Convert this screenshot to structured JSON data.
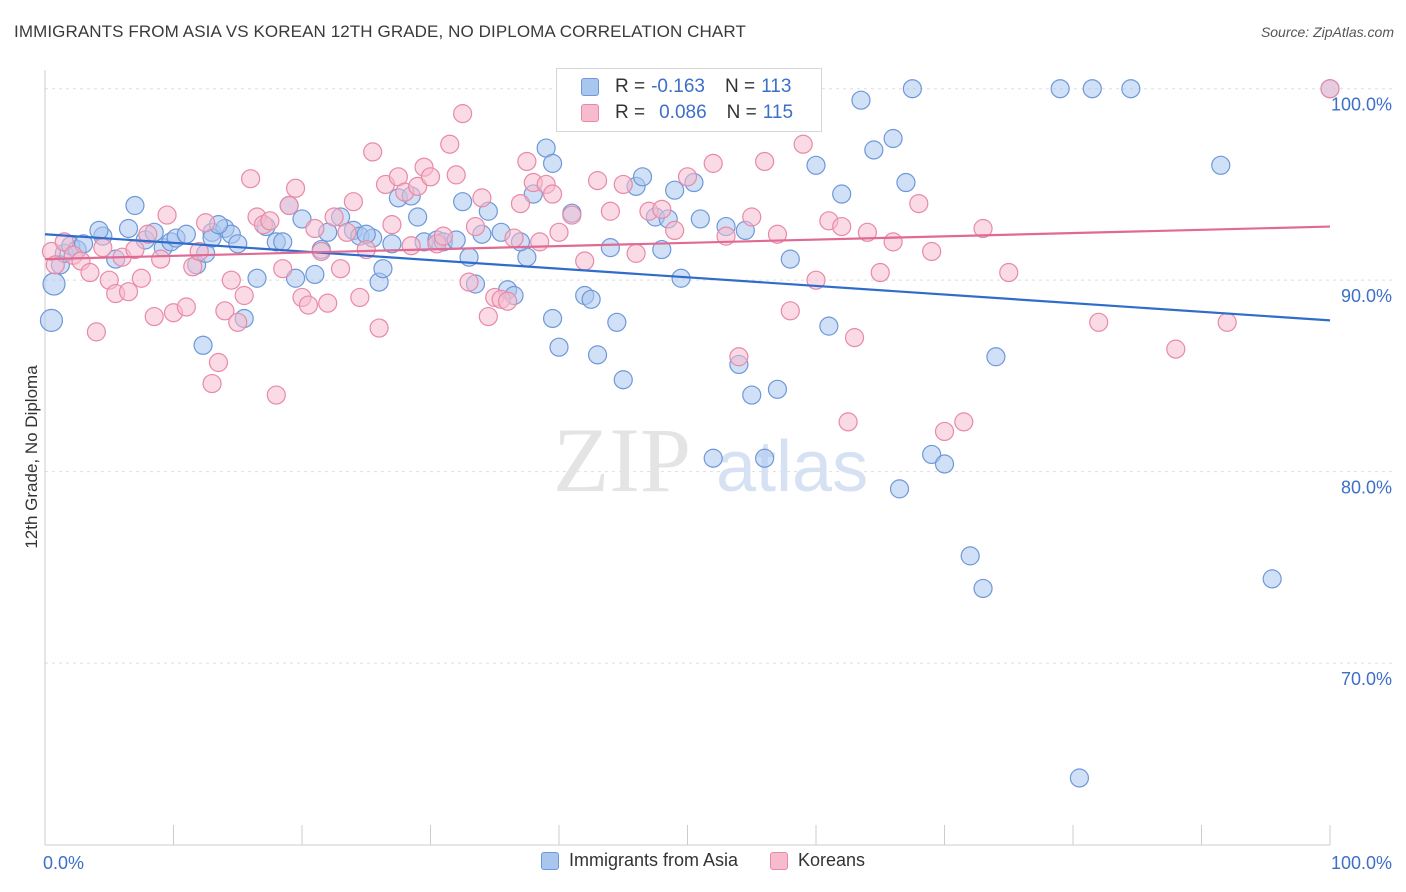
{
  "title": "IMMIGRANTS FROM ASIA VS KOREAN 12TH GRADE, NO DIPLOMA CORRELATION CHART",
  "source": "Source: ZipAtlas.com",
  "watermark": {
    "zip": "ZIP",
    "atlas": "atlas"
  },
  "legend_top": [
    {
      "r_label": "R =",
      "r_value": "-0.163",
      "n_label": "N =",
      "n_value": "113"
    },
    {
      "r_label": "R =",
      "r_value": "0.086",
      "n_label": "N =",
      "n_value": "115"
    }
  ],
  "legend_bottom": [
    "Immigrants from Asia",
    "Koreans"
  ],
  "colors": {
    "blue_fill": "#a9c6ee",
    "blue_stroke": "#6f98d8",
    "blue_line": "#2f6ccc",
    "pink_fill": "#f6bccd",
    "pink_stroke": "#e88aa7",
    "pink_line": "#e06a93",
    "tick_label": "#3d6fc9",
    "grid": "#dddddd"
  },
  "chart_data": {
    "type": "scatter",
    "title": "IMMIGRANTS FROM ASIA VS KOREAN 12TH GRADE, NO DIPLOMA CORRELATION CHART",
    "xlabel": "",
    "ylabel": "12th Grade, No Diploma",
    "xlim": [
      0,
      100
    ],
    "ylim": [
      60.5,
      101.5
    ],
    "x_tick_labels": [
      "0.0%",
      "100.0%"
    ],
    "y_ticks": [
      100,
      90,
      80,
      70
    ],
    "y_tick_labels": [
      "100.0%",
      "90.0%",
      "80.0%",
      "70.0%"
    ],
    "grid": true,
    "legend_position": "top-center",
    "series": [
      {
        "name": "Immigrants from Asia",
        "r": -0.163,
        "n": 113,
        "trend": [
          [
            0,
            92.4
          ],
          [
            100,
            87.9
          ]
        ],
        "points": [
          [
            0.5,
            87.9
          ],
          [
            0.7,
            89.8
          ],
          [
            1.2,
            90.8
          ],
          [
            1.5,
            91.4
          ],
          [
            2.0,
            91.8
          ],
          [
            2.5,
            91.6
          ],
          [
            3.0,
            91.9
          ],
          [
            4.5,
            92.3
          ],
          [
            4.2,
            92.6
          ],
          [
            5.5,
            91.1
          ],
          [
            6.5,
            92.7
          ],
          [
            7.0,
            93.9
          ],
          [
            7.8,
            92.1
          ],
          [
            8.5,
            92.5
          ],
          [
            9.2,
            91.7
          ],
          [
            9.8,
            92.0
          ],
          [
            10.2,
            92.2
          ],
          [
            11.0,
            92.4
          ],
          [
            11.8,
            90.8
          ],
          [
            12.5,
            91.4
          ],
          [
            13.0,
            92.5
          ],
          [
            14.0,
            92.7
          ],
          [
            14.5,
            92.4
          ],
          [
            15.0,
            91.9
          ],
          [
            15.5,
            88.0
          ],
          [
            12.3,
            86.6
          ],
          [
            13.0,
            92.2
          ],
          [
            16.5,
            90.1
          ],
          [
            17.2,
            92.8
          ],
          [
            18.0,
            92.0
          ],
          [
            18.5,
            92.0
          ],
          [
            19.0,
            93.9
          ],
          [
            19.5,
            90.1
          ],
          [
            20.0,
            93.2
          ],
          [
            21.0,
            90.3
          ],
          [
            21.5,
            91.6
          ],
          [
            22.0,
            92.5
          ],
          [
            23.0,
            93.3
          ],
          [
            24.0,
            92.6
          ],
          [
            24.5,
            92.3
          ],
          [
            25.5,
            92.2
          ],
          [
            26.0,
            89.9
          ],
          [
            26.3,
            90.6
          ],
          [
            27.0,
            91.9
          ],
          [
            27.5,
            94.3
          ],
          [
            28.5,
            94.4
          ],
          [
            29.0,
            93.3
          ],
          [
            29.5,
            92.0
          ],
          [
            30.5,
            92.1
          ],
          [
            31.0,
            92.0
          ],
          [
            32.0,
            92.1
          ],
          [
            32.5,
            94.1
          ],
          [
            33.0,
            91.2
          ],
          [
            33.5,
            89.8
          ],
          [
            34.0,
            92.4
          ],
          [
            34.5,
            93.6
          ],
          [
            35.5,
            92.5
          ],
          [
            36.0,
            89.5
          ],
          [
            36.5,
            89.2
          ],
          [
            37.5,
            91.2
          ],
          [
            38.0,
            94.5
          ],
          [
            39.0,
            96.9
          ],
          [
            39.5,
            96.1
          ],
          [
            40.0,
            86.5
          ],
          [
            39.5,
            88.0
          ],
          [
            41.0,
            93.5
          ],
          [
            42.0,
            89.2
          ],
          [
            42.5,
            89.0
          ],
          [
            43.0,
            86.1
          ],
          [
            44.0,
            91.7
          ],
          [
            44.5,
            87.8
          ],
          [
            45.0,
            84.8
          ],
          [
            46.0,
            94.9
          ],
          [
            46.5,
            95.4
          ],
          [
            47.5,
            93.3
          ],
          [
            48.0,
            91.6
          ],
          [
            48.5,
            93.2
          ],
          [
            49.0,
            94.7
          ],
          [
            49.5,
            90.1
          ],
          [
            50.5,
            95.1
          ],
          [
            51.0,
            93.2
          ],
          [
            52.0,
            80.7
          ],
          [
            53.0,
            92.8
          ],
          [
            54.0,
            85.6
          ],
          [
            54.5,
            92.6
          ],
          [
            55.0,
            84.0
          ],
          [
            56.0,
            80.7
          ],
          [
            57.0,
            84.3
          ],
          [
            58.0,
            91.1
          ],
          [
            60.0,
            96.0
          ],
          [
            61.0,
            87.6
          ],
          [
            62.0,
            94.5
          ],
          [
            63.5,
            99.4
          ],
          [
            64.5,
            96.8
          ],
          [
            66.0,
            97.4
          ],
          [
            66.5,
            79.1
          ],
          [
            67.0,
            95.1
          ],
          [
            67.5,
            100.0
          ],
          [
            69.0,
            80.9
          ],
          [
            70.0,
            80.4
          ],
          [
            72.0,
            75.6
          ],
          [
            73.0,
            73.9
          ],
          [
            74.0,
            86.0
          ],
          [
            79.0,
            100.0
          ],
          [
            80.5,
            64.0
          ],
          [
            81.5,
            100.0
          ],
          [
            84.5,
            100.0
          ],
          [
            91.5,
            96.0
          ],
          [
            95.5,
            74.4
          ],
          [
            100.0,
            100.0
          ],
          [
            13.5,
            92.9
          ],
          [
            25.0,
            92.4
          ],
          [
            37.0,
            92.0
          ]
        ]
      },
      {
        "name": "Koreans",
        "r": 0.086,
        "n": 115,
        "trend": [
          [
            0,
            91.1
          ],
          [
            100,
            92.8
          ]
        ],
        "points": [
          [
            0.5,
            91.5
          ],
          [
            0.8,
            90.8
          ],
          [
            1.5,
            92.0
          ],
          [
            2.2,
            91.3
          ],
          [
            2.8,
            91.0
          ],
          [
            3.5,
            90.4
          ],
          [
            4.0,
            87.3
          ],
          [
            4.5,
            91.7
          ],
          [
            5.0,
            90.0
          ],
          [
            5.5,
            89.3
          ],
          [
            6.0,
            91.2
          ],
          [
            6.5,
            89.4
          ],
          [
            7.0,
            91.6
          ],
          [
            7.5,
            90.1
          ],
          [
            8.0,
            92.4
          ],
          [
            8.5,
            88.1
          ],
          [
            9.0,
            91.1
          ],
          [
            9.5,
            93.4
          ],
          [
            10.0,
            88.3
          ],
          [
            11.0,
            88.6
          ],
          [
            11.5,
            90.7
          ],
          [
            12.0,
            91.5
          ],
          [
            12.5,
            93.0
          ],
          [
            13.0,
            84.6
          ],
          [
            13.5,
            85.7
          ],
          [
            14.0,
            88.4
          ],
          [
            14.5,
            90.0
          ],
          [
            15.0,
            87.8
          ],
          [
            15.5,
            89.2
          ],
          [
            16.0,
            95.3
          ],
          [
            16.5,
            93.3
          ],
          [
            17.0,
            92.9
          ],
          [
            17.5,
            93.1
          ],
          [
            18.0,
            84.0
          ],
          [
            18.5,
            90.6
          ],
          [
            19.0,
            93.9
          ],
          [
            19.5,
            94.8
          ],
          [
            20.0,
            89.1
          ],
          [
            20.5,
            88.7
          ],
          [
            21.0,
            92.7
          ],
          [
            21.5,
            91.5
          ],
          [
            22.0,
            88.8
          ],
          [
            22.5,
            93.3
          ],
          [
            23.0,
            90.6
          ],
          [
            23.5,
            92.5
          ],
          [
            24.0,
            94.1
          ],
          [
            24.5,
            89.1
          ],
          [
            25.0,
            91.6
          ],
          [
            25.5,
            96.7
          ],
          [
            26.0,
            87.5
          ],
          [
            26.5,
            95.0
          ],
          [
            27.0,
            92.9
          ],
          [
            27.5,
            95.4
          ],
          [
            28.0,
            94.6
          ],
          [
            28.5,
            91.8
          ],
          [
            29.0,
            94.9
          ],
          [
            29.5,
            95.9
          ],
          [
            30.0,
            95.4
          ],
          [
            30.5,
            91.9
          ],
          [
            31.0,
            92.3
          ],
          [
            31.5,
            97.1
          ],
          [
            32.0,
            95.5
          ],
          [
            32.5,
            98.7
          ],
          [
            33.0,
            89.9
          ],
          [
            33.5,
            92.8
          ],
          [
            34.0,
            94.3
          ],
          [
            34.5,
            88.1
          ],
          [
            35.0,
            89.1
          ],
          [
            35.5,
            89.0
          ],
          [
            36.0,
            88.9
          ],
          [
            36.5,
            92.2
          ],
          [
            37.0,
            94.0
          ],
          [
            37.5,
            96.2
          ],
          [
            38.0,
            95.1
          ],
          [
            38.5,
            92.0
          ],
          [
            39.0,
            95.0
          ],
          [
            39.5,
            94.5
          ],
          [
            40.0,
            92.5
          ],
          [
            41.0,
            93.4
          ],
          [
            42.0,
            91.0
          ],
          [
            43.0,
            95.2
          ],
          [
            44.0,
            93.6
          ],
          [
            45.0,
            95.0
          ],
          [
            46.0,
            91.4
          ],
          [
            47.0,
            93.6
          ],
          [
            48.0,
            93.7
          ],
          [
            49.0,
            92.6
          ],
          [
            50.0,
            95.4
          ],
          [
            51.0,
            100.0
          ],
          [
            52.0,
            96.1
          ],
          [
            53.0,
            92.3
          ],
          [
            54.0,
            86.0
          ],
          [
            55.0,
            93.3
          ],
          [
            56.0,
            96.2
          ],
          [
            57.0,
            92.4
          ],
          [
            58.0,
            88.4
          ],
          [
            59.0,
            97.1
          ],
          [
            60.0,
            90.0
          ],
          [
            61.0,
            93.1
          ],
          [
            62.0,
            92.8
          ],
          [
            62.5,
            82.6
          ],
          [
            63.0,
            87.0
          ],
          [
            64.0,
            92.5
          ],
          [
            65.0,
            90.4
          ],
          [
            66.0,
            92.0
          ],
          [
            68.0,
            94.0
          ],
          [
            69.0,
            91.5
          ],
          [
            70.0,
            82.1
          ],
          [
            71.5,
            82.6
          ],
          [
            73.0,
            92.7
          ],
          [
            75.0,
            90.4
          ],
          [
            82.0,
            87.8
          ],
          [
            88.0,
            86.4
          ],
          [
            92.0,
            87.8
          ],
          [
            100.0,
            100.0
          ]
        ]
      }
    ]
  }
}
